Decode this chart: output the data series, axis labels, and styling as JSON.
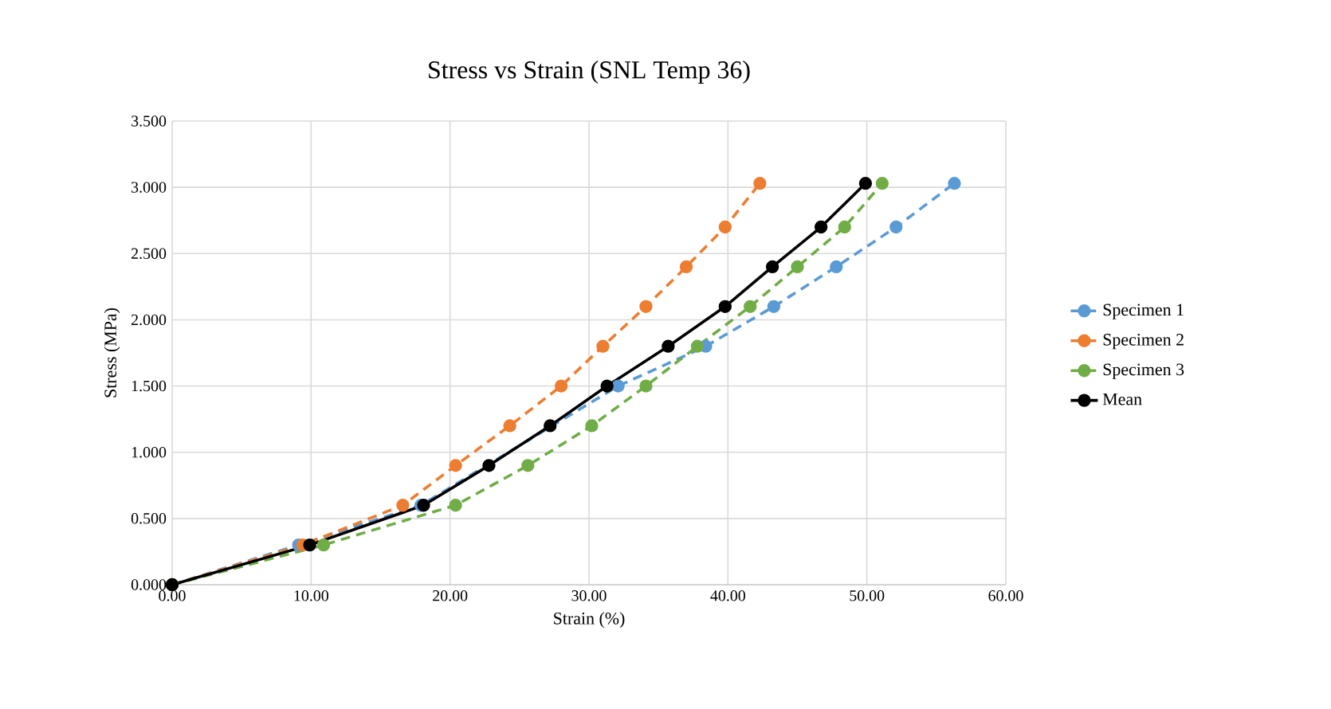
{
  "chart_data": {
    "type": "line",
    "title": "Stress vs Strain (SNL Temp 36)",
    "xlabel": "Strain (%)",
    "ylabel": "Stress  (MPa)",
    "xlim": [
      0,
      60
    ],
    "ylim": [
      0,
      3.5
    ],
    "xticks": [
      {
        "value": 0,
        "label": "0.00"
      },
      {
        "value": 10,
        "label": "10.00"
      },
      {
        "value": 20,
        "label": "20.00"
      },
      {
        "value": 30,
        "label": "30.00"
      },
      {
        "value": 40,
        "label": "40.00"
      },
      {
        "value": 50,
        "label": "50.00"
      },
      {
        "value": 60,
        "label": "60.00"
      }
    ],
    "yticks": [
      {
        "value": 0,
        "label": "0.000"
      },
      {
        "value": 0.5,
        "label": "0.500"
      },
      {
        "value": 1,
        "label": "1.000"
      },
      {
        "value": 1.5,
        "label": "1.500"
      },
      {
        "value": 2,
        "label": "2.000"
      },
      {
        "value": 2.5,
        "label": "2.500"
      },
      {
        "value": 3,
        "label": "3.000"
      },
      {
        "value": 3.5,
        "label": "3.500"
      }
    ],
    "grid": true,
    "legend": "right",
    "marker": "circle",
    "series": [
      {
        "name": "Specimen 1",
        "color": "#5b9bd5",
        "line_style": "dashed",
        "x": [
          0,
          9.1,
          17.9,
          22.5,
          27.3,
          32.1,
          38.4,
          43.3,
          47.8,
          52.1,
          56.3
        ],
        "values": [
          0,
          0.3,
          0.6,
          null,
          null,
          1.5,
          1.8,
          2.1,
          2.4,
          2.7,
          3.03
        ]
      },
      {
        "name": "Specimen 2",
        "color": "#ed7d31",
        "line_style": "dashed",
        "x": [
          0,
          9.4,
          16.6,
          20.4,
          24.3,
          28.0,
          31.0,
          34.1,
          37.0,
          39.8,
          42.3
        ],
        "values": [
          0,
          0.3,
          0.6,
          0.9,
          1.2,
          1.5,
          1.8,
          2.1,
          2.4,
          2.7,
          3.03
        ]
      },
      {
        "name": "Specimen 3",
        "color": "#70ad47",
        "line_style": "dashed",
        "x": [
          0,
          10.9,
          20.4,
          25.6,
          30.2,
          34.1,
          37.8,
          41.6,
          45.0,
          48.4,
          51.1
        ],
        "values": [
          0,
          0.3,
          0.6,
          0.9,
          1.2,
          1.5,
          1.8,
          2.1,
          2.4,
          2.7,
          3.03
        ]
      },
      {
        "name": "Mean",
        "color": "#000000",
        "line_style": "solid",
        "x": [
          0,
          9.9,
          18.1,
          22.8,
          27.2,
          31.3,
          35.7,
          39.8,
          43.2,
          46.7,
          49.9
        ],
        "values": [
          0,
          0.3,
          0.6,
          0.9,
          1.2,
          1.5,
          1.8,
          2.1,
          2.4,
          2.7,
          3.03
        ]
      }
    ]
  }
}
